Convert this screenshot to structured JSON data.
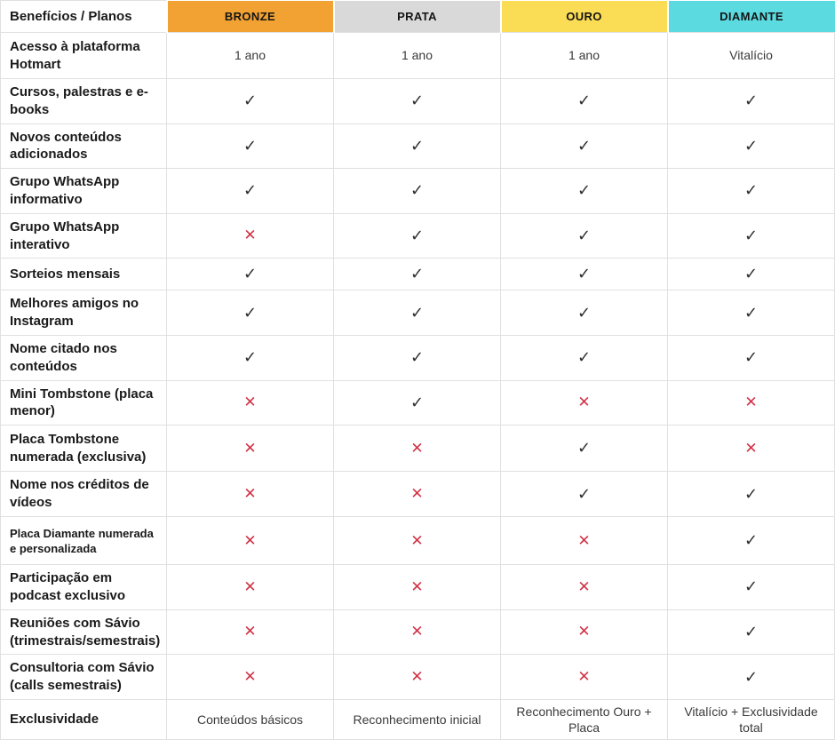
{
  "header": {
    "benefits_label": "Benefícios / Planos",
    "plans": [
      {
        "name": "BRONZE",
        "color": "#F2A233"
      },
      {
        "name": "PRATA",
        "color": "#D9D9D9"
      },
      {
        "name": "OURO",
        "color": "#FBDC55"
      },
      {
        "name": "DIAMANTE",
        "color": "#5BDBE0"
      }
    ]
  },
  "icons": {
    "check": "✓",
    "cross": "✕"
  },
  "colors": {
    "check_dark": "#2F2F2F",
    "cross_red": "#D13347",
    "border": "#E0E0E0",
    "label_text": "#1A1A1A",
    "value_text": "#3A3A3A"
  },
  "chart_data": {
    "type": "table",
    "title": "Benefícios / Planos",
    "columns": [
      "BRONZE",
      "PRATA",
      "OURO",
      "DIAMANTE"
    ],
    "rows": [
      {
        "label": "Acesso à plataforma Hotmart",
        "values": [
          "1 ano",
          "1 ano",
          "1 ano",
          "Vitalício"
        ]
      },
      {
        "label": "Cursos, palestras e e-books",
        "values": [
          "check",
          "check",
          "check",
          "check"
        ]
      },
      {
        "label": "Novos conteúdos adicionados",
        "values": [
          "check",
          "check",
          "check",
          "check"
        ]
      },
      {
        "label": "Grupo WhatsApp informativo",
        "values": [
          "check",
          "check",
          "check",
          "check"
        ]
      },
      {
        "label": "Grupo WhatsApp interativo",
        "values": [
          "cross",
          "check",
          "check",
          "check"
        ]
      },
      {
        "label": "Sorteios mensais",
        "values": [
          "check",
          "check",
          "check",
          "check"
        ]
      },
      {
        "label": "Melhores amigos no Instagram",
        "values": [
          "check",
          "check",
          "check",
          "check"
        ]
      },
      {
        "label": "Nome citado nos conteúdos",
        "values": [
          "check",
          "check",
          "check",
          "check"
        ]
      },
      {
        "label": "Mini Tombstone (placa menor)",
        "values": [
          "cross",
          "check",
          "cross",
          "cross"
        ]
      },
      {
        "label": "Placa Tombstone numerada (exclusiva)",
        "values": [
          "cross",
          "cross",
          "check",
          "cross"
        ]
      },
      {
        "label": "Nome nos créditos de vídeos",
        "values": [
          "cross",
          "cross",
          "check",
          "check"
        ]
      },
      {
        "label": "Placa Diamante numerada e personalizada",
        "values": [
          "cross",
          "cross",
          "cross",
          "check"
        ]
      },
      {
        "label": "Participação em podcast exclusivo",
        "values": [
          "cross",
          "cross",
          "cross",
          "check"
        ]
      },
      {
        "label": "Reuniões com Sávio (trimestrais/semestrais)",
        "values": [
          "cross",
          "cross",
          "cross",
          "check"
        ]
      },
      {
        "label": "Consultoria com Sávio (calls semestrais)",
        "values": [
          "cross",
          "cross",
          "cross",
          "check"
        ]
      },
      {
        "label": "Exclusividade",
        "values": [
          "Conteúdos básicos",
          "Reconhecimento inicial",
          "Reconhecimento Ouro + Placa",
          "Vitalício + Exclusividade total"
        ]
      }
    ]
  }
}
